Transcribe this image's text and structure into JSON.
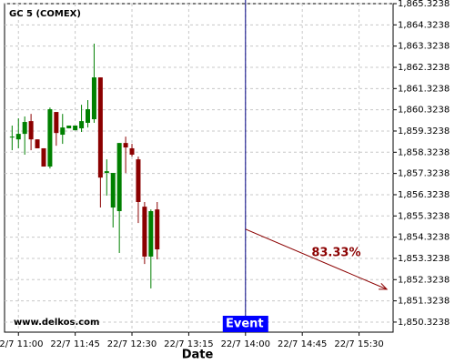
{
  "chart_data": {
    "type": "candlestick",
    "title": "GC 5 (COMEX)",
    "watermark": "www.delkos.com",
    "x_label": "Date",
    "x": [
      "22/7 10:55",
      "22/7 11:00",
      "22/7 11:05",
      "22/7 11:10",
      "22/7 11:15",
      "22/7 11:20",
      "22/7 11:25",
      "22/7 11:30",
      "22/7 11:35",
      "22/7 11:40",
      "22/7 11:45",
      "22/7 11:50",
      "22/7 11:55",
      "22/7 12:00",
      "22/7 12:05",
      "22/7 12:10",
      "22/7 12:15",
      "22/7 12:20",
      "22/7 12:25",
      "22/7 12:30",
      "22/7 12:35",
      "22/7 12:40",
      "22/7 12:45",
      "22/7 12:50"
    ],
    "open": [
      1859.02,
      1858.93,
      1859.19,
      1859.79,
      1858.93,
      1858.51,
      1857.65,
      1860.22,
      1859.15,
      1859.45,
      1859.36,
      1859.45,
      1859.71,
      1859.88,
      1861.85,
      1857.35,
      1855.72,
      1855.55,
      1858.76,
      1858.51,
      1857.99,
      1855.76,
      1853.41,
      1855.63
    ],
    "high": [
      1859.58,
      1859.92,
      1860.01,
      1860.13,
      1858.93,
      1858.51,
      1860.43,
      1860.22,
      1860.13,
      1859.58,
      1859.58,
      1860.56,
      1860.78,
      1863.44,
      1861.85,
      1857.99,
      1857.35,
      1858.76,
      1859.06,
      1858.72,
      1858.12,
      1855.98,
      1855.63,
      1855.98
    ],
    "low": [
      1858.42,
      1858.51,
      1858.21,
      1858.42,
      1858.51,
      1857.65,
      1857.56,
      1858.63,
      1858.72,
      1859.45,
      1859.36,
      1859.28,
      1859.49,
      1859.71,
      1855.72,
      1856.28,
      1854.78,
      1853.58,
      1857.35,
      1858.12,
      1854.99,
      1853.06,
      1851.91,
      1853.28
    ],
    "close": [
      1859.06,
      1859.19,
      1859.75,
      1858.93,
      1858.51,
      1857.65,
      1860.35,
      1859.23,
      1859.49,
      1859.58,
      1859.58,
      1859.79,
      1860.35,
      1861.85,
      1857.13,
      1857.43,
      1857.35,
      1858.76,
      1858.55,
      1858.21,
      1855.98,
      1853.41,
      1855.55,
      1853.75
    ],
    "up_color": "#008000",
    "down_color": "#8b0000",
    "xlim": [
      "22/7 10:49",
      "22/7 15:57"
    ],
    "xticks": [
      "22/7 11:00",
      "22/7 11:45",
      "22/7 12:30",
      "22/7 13:15",
      "22/7 14:00",
      "22/7 14:45",
      "22/7 15:30"
    ],
    "ylim": [
      1849.85,
      1865.3238
    ],
    "yticks": [
      {
        "value": 1850.3238,
        "label": "1,850.3238"
      },
      {
        "value": 1851.3238,
        "label": "1,851.3238"
      },
      {
        "value": 1852.3238,
        "label": "1,852.3238"
      },
      {
        "value": 1853.3238,
        "label": "1,853.3238"
      },
      {
        "value": 1854.3238,
        "label": "1,854.3238"
      },
      {
        "value": 1855.3238,
        "label": "1,855.3238"
      },
      {
        "value": 1856.3238,
        "label": "1,856.3238"
      },
      {
        "value": 1857.3238,
        "label": "1,857.3238"
      },
      {
        "value": 1858.3238,
        "label": "1,858.3238"
      },
      {
        "value": 1859.3238,
        "label": "1,859.3238"
      },
      {
        "value": 1860.3238,
        "label": "1,860.3238"
      },
      {
        "value": 1861.3238,
        "label": "1,861.3238"
      },
      {
        "value": 1862.3238,
        "label": "1,862.3238"
      },
      {
        "value": 1863.3238,
        "label": "1,863.3238"
      },
      {
        "value": 1864.3238,
        "label": "1,864.3238"
      },
      {
        "value": 1865.3238,
        "label": "1,865.3238"
      }
    ],
    "grid": true,
    "event": {
      "label": "Event",
      "x": "22/7 14:00",
      "color": "#000080",
      "box_color": "#0000ff"
    },
    "projection": {
      "x": [
        "22/7 14:00",
        "22/7 15:52"
      ],
      "y": [
        1854.7,
        1851.87
      ],
      "label": "83.33%",
      "color": "#8b0000"
    }
  }
}
